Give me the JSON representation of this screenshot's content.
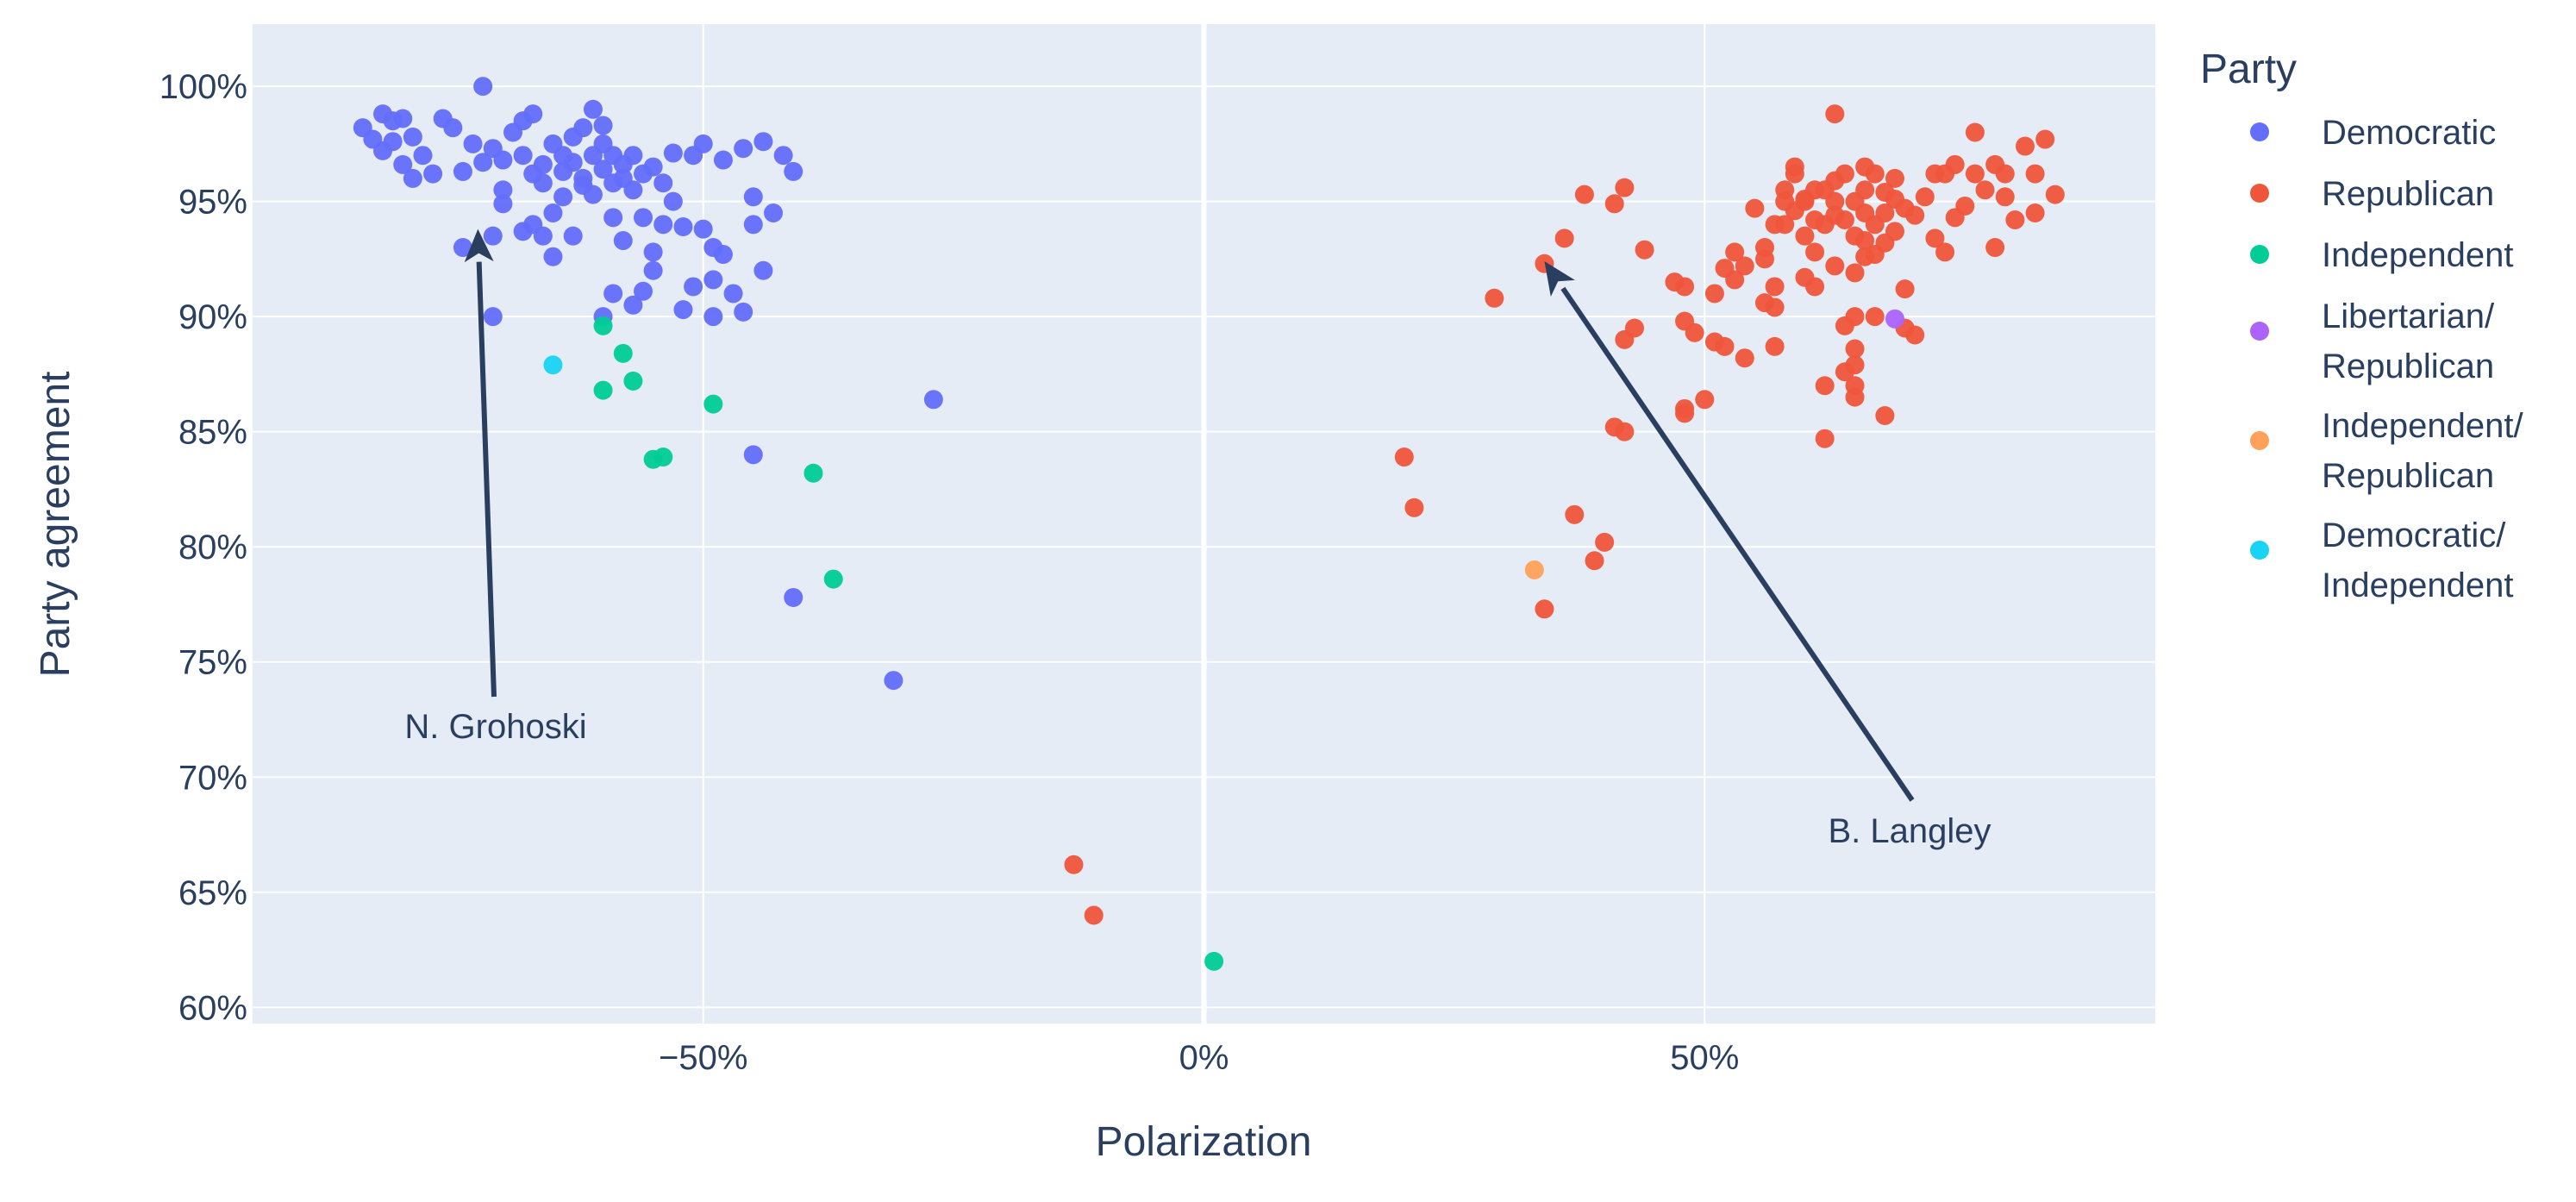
{
  "chart_data": {
    "type": "scatter",
    "xlabel": "Polarization",
    "ylabel": "Party agreement",
    "xlim": [
      -0.95,
      0.95
    ],
    "ylim": [
      0.593,
      1.027
    ],
    "x_ticks": [
      {
        "value": -0.5,
        "label": "−50%"
      },
      {
        "value": 0,
        "label": "0%"
      },
      {
        "value": 0.5,
        "label": "50%"
      }
    ],
    "y_ticks": [
      {
        "value": 0.6,
        "label": "60%"
      },
      {
        "value": 0.65,
        "label": "65%"
      },
      {
        "value": 0.7,
        "label": "70%"
      },
      {
        "value": 0.75,
        "label": "75%"
      },
      {
        "value": 0.8,
        "label": "80%"
      },
      {
        "value": 0.85,
        "label": "85%"
      },
      {
        "value": 0.9,
        "label": "90%"
      },
      {
        "value": 0.95,
        "label": "95%"
      },
      {
        "value": 1.0,
        "label": "100%"
      }
    ],
    "zero_line": true,
    "grid": true,
    "background": "#e5ecf6",
    "legend": {
      "title": "Party",
      "placement": "right"
    },
    "series": [
      {
        "name": "Democratic",
        "label_lines": [
          "Democratic"
        ],
        "color": "#636efa",
        "points": [
          [
            -0.84,
            0.982
          ],
          [
            -0.83,
            0.977
          ],
          [
            -0.82,
            0.988
          ],
          [
            -0.82,
            0.972
          ],
          [
            -0.81,
            0.985
          ],
          [
            -0.81,
            0.976
          ],
          [
            -0.8,
            0.966
          ],
          [
            -0.8,
            0.986
          ],
          [
            -0.79,
            0.96
          ],
          [
            -0.79,
            0.978
          ],
          [
            -0.78,
            0.97
          ],
          [
            -0.77,
            0.962
          ],
          [
            -0.76,
            0.986
          ],
          [
            -0.75,
            0.982
          ],
          [
            -0.74,
            0.93
          ],
          [
            -0.74,
            0.963
          ],
          [
            -0.73,
            0.975
          ],
          [
            -0.72,
            0.967
          ],
          [
            -0.72,
            1.0
          ],
          [
            -0.71,
            0.973
          ],
          [
            -0.71,
            0.935
          ],
          [
            -0.71,
            0.9
          ],
          [
            -0.7,
            0.955
          ],
          [
            -0.7,
            0.949
          ],
          [
            -0.7,
            0.968
          ],
          [
            -0.69,
            0.98
          ],
          [
            -0.68,
            0.985
          ],
          [
            -0.68,
            0.97
          ],
          [
            -0.68,
            0.937
          ],
          [
            -0.67,
            0.988
          ],
          [
            -0.67,
            0.962
          ],
          [
            -0.67,
            0.94
          ],
          [
            -0.66,
            0.958
          ],
          [
            -0.66,
            0.966
          ],
          [
            -0.66,
            0.935
          ],
          [
            -0.65,
            0.975
          ],
          [
            -0.65,
            0.945
          ],
          [
            -0.65,
            0.926
          ],
          [
            -0.64,
            0.952
          ],
          [
            -0.64,
            0.97
          ],
          [
            -0.64,
            0.963
          ],
          [
            -0.63,
            0.935
          ],
          [
            -0.63,
            0.978
          ],
          [
            -0.63,
            0.967
          ],
          [
            -0.62,
            0.982
          ],
          [
            -0.62,
            0.96
          ],
          [
            -0.62,
            0.957
          ],
          [
            -0.61,
            0.97
          ],
          [
            -0.61,
            0.953
          ],
          [
            -0.61,
            0.99
          ],
          [
            -0.6,
            0.964
          ],
          [
            -0.6,
            0.975
          ],
          [
            -0.6,
            0.983
          ],
          [
            -0.6,
            0.9
          ],
          [
            -0.59,
            0.958
          ],
          [
            -0.59,
            0.97
          ],
          [
            -0.59,
            0.943
          ],
          [
            -0.59,
            0.91
          ],
          [
            -0.58,
            0.96
          ],
          [
            -0.58,
            0.966
          ],
          [
            -0.58,
            0.933
          ],
          [
            -0.57,
            0.97
          ],
          [
            -0.57,
            0.955
          ],
          [
            -0.57,
            0.905
          ],
          [
            -0.56,
            0.962
          ],
          [
            -0.56,
            0.943
          ],
          [
            -0.56,
            0.911
          ],
          [
            -0.55,
            0.965
          ],
          [
            -0.55,
            0.928
          ],
          [
            -0.55,
            0.92
          ],
          [
            -0.54,
            0.958
          ],
          [
            -0.54,
            0.94
          ],
          [
            -0.53,
            0.971
          ],
          [
            -0.53,
            0.95
          ],
          [
            -0.52,
            0.939
          ],
          [
            -0.52,
            0.903
          ],
          [
            -0.51,
            0.97
          ],
          [
            -0.51,
            0.913
          ],
          [
            -0.5,
            0.975
          ],
          [
            -0.5,
            0.938
          ],
          [
            -0.49,
            0.9
          ],
          [
            -0.49,
            0.93
          ],
          [
            -0.48,
            0.968
          ],
          [
            -0.48,
            0.927
          ],
          [
            -0.47,
            0.91
          ],
          [
            -0.46,
            0.902
          ],
          [
            -0.46,
            0.973
          ],
          [
            -0.45,
            0.952
          ],
          [
            -0.45,
            0.94
          ],
          [
            -0.44,
            0.92
          ],
          [
            -0.43,
            0.945
          ],
          [
            -0.42,
            0.97
          ],
          [
            -0.41,
            0.963
          ],
          [
            -0.49,
            0.916
          ],
          [
            -0.44,
            0.976
          ],
          [
            -0.45,
            0.84
          ],
          [
            -0.41,
            0.778
          ],
          [
            -0.31,
            0.742
          ],
          [
            -0.27,
            0.864
          ]
        ]
      },
      {
        "name": "Republican",
        "label_lines": [
          "Republican"
        ],
        "color": "#ef553b",
        "points": [
          [
            -0.13,
            0.662
          ],
          [
            -0.11,
            0.64
          ],
          [
            0.2,
            0.839
          ],
          [
            0.21,
            0.817
          ],
          [
            0.29,
            0.908
          ],
          [
            0.34,
            0.923
          ],
          [
            0.36,
            0.934
          ],
          [
            0.38,
            0.953
          ],
          [
            0.34,
            0.773
          ],
          [
            0.37,
            0.814
          ],
          [
            0.39,
            0.794
          ],
          [
            0.4,
            0.802
          ],
          [
            0.41,
            0.852
          ],
          [
            0.42,
            0.85
          ],
          [
            0.41,
            0.949
          ],
          [
            0.42,
            0.956
          ],
          [
            0.42,
            0.89
          ],
          [
            0.43,
            0.895
          ],
          [
            0.44,
            0.929
          ],
          [
            0.47,
            0.915
          ],
          [
            0.48,
            0.913
          ],
          [
            0.48,
            0.898
          ],
          [
            0.48,
            0.858
          ],
          [
            0.48,
            0.86
          ],
          [
            0.49,
            0.893
          ],
          [
            0.5,
            0.864
          ],
          [
            0.51,
            0.889
          ],
          [
            0.51,
            0.91
          ],
          [
            0.52,
            0.921
          ],
          [
            0.52,
            0.887
          ],
          [
            0.53,
            0.928
          ],
          [
            0.53,
            0.916
          ],
          [
            0.54,
            0.882
          ],
          [
            0.54,
            0.922
          ],
          [
            0.55,
            0.947
          ],
          [
            0.56,
            0.93
          ],
          [
            0.56,
            0.906
          ],
          [
            0.56,
            0.925
          ],
          [
            0.57,
            0.94
          ],
          [
            0.57,
            0.904
          ],
          [
            0.57,
            0.913
          ],
          [
            0.57,
            0.887
          ],
          [
            0.58,
            0.955
          ],
          [
            0.58,
            0.94
          ],
          [
            0.59,
            0.962
          ],
          [
            0.59,
            0.946
          ],
          [
            0.6,
            0.951
          ],
          [
            0.6,
            0.935
          ],
          [
            0.61,
            0.942
          ],
          [
            0.6,
            0.917
          ],
          [
            0.61,
            0.913
          ],
          [
            0.61,
            0.928
          ],
          [
            0.62,
            0.955
          ],
          [
            0.62,
            0.87
          ],
          [
            0.62,
            0.847
          ],
          [
            0.63,
            0.959
          ],
          [
            0.63,
            0.944
          ],
          [
            0.63,
            0.922
          ],
          [
            0.63,
            0.988
          ],
          [
            0.64,
            0.962
          ],
          [
            0.64,
            0.942
          ],
          [
            0.64,
            0.876
          ],
          [
            0.64,
            0.896
          ],
          [
            0.65,
            0.95
          ],
          [
            0.65,
            0.935
          ],
          [
            0.65,
            0.919
          ],
          [
            0.65,
            0.9
          ],
          [
            0.65,
            0.87
          ],
          [
            0.65,
            0.865
          ],
          [
            0.65,
            0.879
          ],
          [
            0.65,
            0.886
          ],
          [
            0.66,
            0.945
          ],
          [
            0.66,
            0.926
          ],
          [
            0.66,
            0.933
          ],
          [
            0.66,
            0.955
          ],
          [
            0.66,
            0.965
          ],
          [
            0.67,
            0.94
          ],
          [
            0.67,
            0.927
          ],
          [
            0.67,
            0.9
          ],
          [
            0.67,
            0.962
          ],
          [
            0.68,
            0.954
          ],
          [
            0.68,
            0.945
          ],
          [
            0.68,
            0.932
          ],
          [
            0.68,
            0.857
          ],
          [
            0.69,
            0.96
          ],
          [
            0.69,
            0.951
          ],
          [
            0.69,
            0.937
          ],
          [
            0.7,
            0.912
          ],
          [
            0.7,
            0.895
          ],
          [
            0.7,
            0.947
          ],
          [
            0.71,
            0.944
          ],
          [
            0.71,
            0.892
          ],
          [
            0.72,
            0.952
          ],
          [
            0.73,
            0.934
          ],
          [
            0.73,
            0.962
          ],
          [
            0.74,
            0.928
          ],
          [
            0.74,
            0.962
          ],
          [
            0.75,
            0.966
          ],
          [
            0.75,
            0.943
          ],
          [
            0.76,
            0.948
          ],
          [
            0.77,
            0.962
          ],
          [
            0.77,
            0.98
          ],
          [
            0.78,
            0.955
          ],
          [
            0.79,
            0.93
          ],
          [
            0.79,
            0.966
          ],
          [
            0.8,
            0.962
          ],
          [
            0.8,
            0.952
          ],
          [
            0.81,
            0.942
          ],
          [
            0.82,
            0.974
          ],
          [
            0.83,
            0.945
          ],
          [
            0.83,
            0.962
          ],
          [
            0.84,
            0.977
          ],
          [
            0.85,
            0.953
          ],
          [
            0.58,
            0.95
          ],
          [
            0.59,
            0.965
          ],
          [
            0.6,
            0.95
          ],
          [
            0.61,
            0.955
          ],
          [
            0.62,
            0.94
          ],
          [
            0.63,
            0.95
          ]
        ]
      },
      {
        "name": "Independent",
        "label_lines": [
          "Independent"
        ],
        "color": "#00cc96",
        "points": [
          [
            -0.6,
            0.896
          ],
          [
            -0.6,
            0.868
          ],
          [
            -0.58,
            0.884
          ],
          [
            -0.57,
            0.872
          ],
          [
            -0.55,
            0.838
          ],
          [
            -0.54,
            0.839
          ],
          [
            -0.49,
            0.862
          ],
          [
            -0.39,
            0.832
          ],
          [
            -0.37,
            0.786
          ],
          [
            0.01,
            0.62
          ]
        ]
      },
      {
        "name": "Libertarian/ Republican",
        "label_lines": [
          "Libertarian/",
          "Republican"
        ],
        "color": "#ab63fa",
        "points": [
          [
            0.69,
            0.899
          ]
        ]
      },
      {
        "name": "Independent/ Republican",
        "label_lines": [
          "Independent/",
          "Republican"
        ],
        "color": "#ffa15a",
        "points": [
          [
            0.33,
            0.79
          ]
        ]
      },
      {
        "name": "Democratic/ Independent",
        "label_lines": [
          "Democratic/",
          "Independent"
        ],
        "color": "#19d3f3",
        "points": [
          [
            -0.65,
            0.879
          ]
        ]
      }
    ],
    "annotations": [
      {
        "text": "N. Grohoski",
        "x": -0.725,
        "y": 0.938
      },
      {
        "text": "B. Langley",
        "x": 0.34,
        "y": 0.924
      }
    ]
  }
}
